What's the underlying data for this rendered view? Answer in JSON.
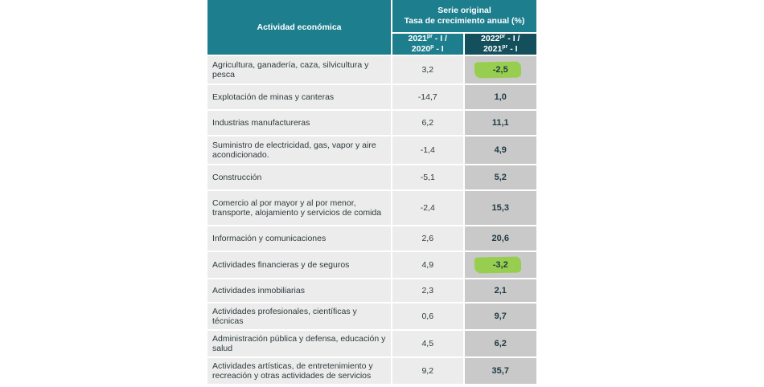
{
  "header": {
    "activity_label": "Actividad económica",
    "serie_line1": "Serie original",
    "serie_line2": "Tasa de crecimiento anual (%)",
    "col1_a": "2021",
    "col1_a_sup": "pr",
    "col1_b": " - I /",
    "col1_c": "2020",
    "col1_c_sup": "p",
    "col1_d": " - I",
    "col2_a": "2022",
    "col2_a_sup": "pr",
    "col2_b": " - I /",
    "col2_c": "2021",
    "col2_c_sup": "pr",
    "col2_d": " - I"
  },
  "rows": [
    {
      "activity": "Agricultura, ganadería, caza, silvicultura y pesca",
      "v2021": "3,2",
      "v2022": "-2,5",
      "highlight": true
    },
    {
      "activity": "Explotación de minas y canteras",
      "v2021": "-14,7",
      "v2022": "1,0",
      "highlight": false
    },
    {
      "activity": "Industrias manufactureras",
      "v2021": "6,2",
      "v2022": "11,1",
      "highlight": false
    },
    {
      "activity": "Suministro de electricidad, gas, vapor y aire acondicionado.",
      "v2021": "-1,4",
      "v2022": "4,9",
      "highlight": false
    },
    {
      "activity": "Construcción",
      "v2021": "-5,1",
      "v2022": "5,2",
      "highlight": false
    },
    {
      "activity": "Comercio al por mayor y al por menor, transporte, alojamiento y servicios de comida",
      "v2021": "-2,4",
      "v2022": "15,3",
      "highlight": false
    },
    {
      "activity": "Información y comunicaciones",
      "v2021": "2,6",
      "v2022": "20,6",
      "highlight": false
    },
    {
      "activity": "Actividades financieras y de seguros",
      "v2021": "4,9",
      "v2022": "-3,2",
      "highlight": true
    },
    {
      "activity": "Actividades inmobiliarias",
      "v2021": "2,3",
      "v2022": "2,1",
      "highlight": false
    },
    {
      "activity": "Actividades profesionales, científicas y técnicas",
      "v2021": "0,6",
      "v2022": "9,7",
      "highlight": false
    },
    {
      "activity": "Administración pública y defensa, educación y salud",
      "v2021": "4,5",
      "v2022": "6,2",
      "highlight": false
    },
    {
      "activity": "Actividades artísticas, de entretenimiento y recreación y otras actividades de servicios",
      "v2021": "9,2",
      "v2022": "35,7",
      "highlight": false
    }
  ]
}
